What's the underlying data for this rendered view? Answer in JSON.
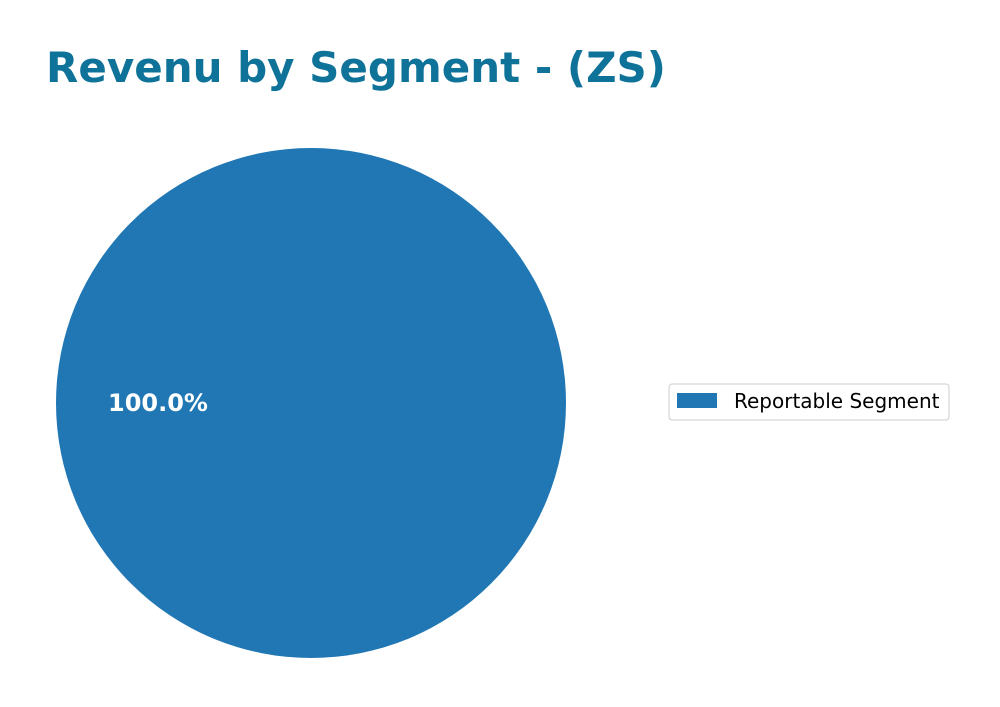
{
  "chart_data": {
    "type": "pie",
    "title": "Revenu by Segment - (ZS)",
    "categories": [
      "Reportable Segment"
    ],
    "values": [
      100.0
    ],
    "labels": [
      "100.0%"
    ],
    "colors": [
      "#2077b4"
    ],
    "legend": {
      "placement": "right",
      "entries": [
        "Reportable Segment"
      ]
    },
    "grid": false
  },
  "colors": {
    "title": "#0f7399",
    "legend_border": "#cccccc"
  }
}
